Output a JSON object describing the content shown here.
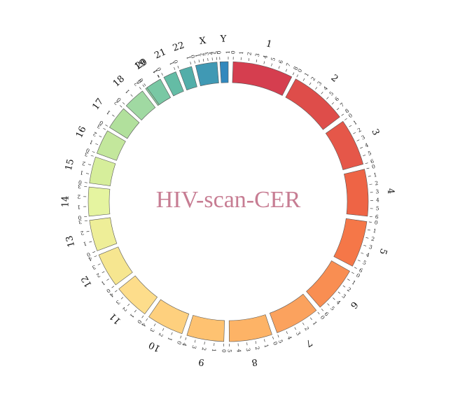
{
  "title": "HIV-scan-CER",
  "title_color": "#c77d93",
  "chromosomes": [
    {
      "name": "1",
      "ticks": [
        "0",
        "1",
        "2",
        "3",
        "4",
        "5",
        "6",
        "7",
        "8"
      ],
      "color": "#d53e4f"
    },
    {
      "name": "2",
      "ticks": [
        "0",
        "1",
        "2",
        "3",
        "4",
        "5",
        "6",
        "7",
        "8"
      ],
      "color": "#de4d4a"
    },
    {
      "name": "3",
      "ticks": [
        "0",
        "1",
        "2",
        "3",
        "4",
        "5",
        "6"
      ],
      "color": "#e55749"
    },
    {
      "name": "4",
      "ticks": [
        "0",
        "1",
        "2",
        "3",
        "4",
        "5",
        "6"
      ],
      "color": "#ee6445"
    },
    {
      "name": "5",
      "ticks": [
        "0",
        "1",
        "2",
        "3",
        "4",
        "5",
        "6"
      ],
      "color": "#f57748"
    },
    {
      "name": "6",
      "ticks": [
        "0",
        "1",
        "2",
        "3",
        "4",
        "5",
        "6"
      ],
      "color": "#f98e52"
    },
    {
      "name": "7",
      "ticks": [
        "0",
        "1",
        "2",
        "3",
        "4",
        "5"
      ],
      "color": "#fba25e"
    },
    {
      "name": "8",
      "ticks": [
        "0",
        "1",
        "2",
        "3",
        "4",
        "5"
      ],
      "color": "#fdb366"
    },
    {
      "name": "9",
      "ticks": [
        "0",
        "1",
        "2",
        "3",
        "4"
      ],
      "color": "#fec271"
    },
    {
      "name": "10",
      "ticks": [
        "0",
        "1",
        "2",
        "3",
        "4"
      ],
      "color": "#fed07e"
    },
    {
      "name": "11",
      "ticks": [
        "0",
        "1",
        "2",
        "3",
        "4"
      ],
      "color": "#fddd8b"
    },
    {
      "name": "12",
      "ticks": [
        "0",
        "1",
        "2",
        "3",
        "4"
      ],
      "color": "#f6e690"
    },
    {
      "name": "13",
      "ticks": [
        "0",
        "1",
        "2",
        "3"
      ],
      "color": "#eeee98"
    },
    {
      "name": "14",
      "ticks": [
        "0",
        "1",
        "2",
        "3"
      ],
      "color": "#e5f4a0"
    },
    {
      "name": "15",
      "ticks": [
        "0",
        "1",
        "2",
        "3"
      ],
      "color": "#d6ee9b"
    },
    {
      "name": "16",
      "ticks": [
        "0",
        "1",
        "2",
        "3"
      ],
      "color": "#c3e79c"
    },
    {
      "name": "17",
      "ticks": [
        "0",
        "1",
        "2"
      ],
      "color": "#b1e09c"
    },
    {
      "name": "18",
      "ticks": [
        "0",
        "1",
        "2"
      ],
      "color": "#a0d9a2"
    },
    {
      "name": "19",
      "ticks": [
        "0",
        "1"
      ],
      "color": "#8fd1a4"
    },
    {
      "name": "20",
      "ticks": [
        "0",
        "1"
      ],
      "color": "#79c8a4"
    },
    {
      "name": "21",
      "ticks": [
        "0",
        "1"
      ],
      "color": "#64bca5"
    },
    {
      "name": "22",
      "ticks": [
        "0",
        "1"
      ],
      "color": "#52aea9"
    },
    {
      "name": "X",
      "ticks": [
        "0",
        "1",
        "2",
        "3",
        "4",
        "5"
      ],
      "color": "#4099b4"
    },
    {
      "name": "Y",
      "ticks": [
        "0",
        "1"
      ],
      "color": "#3288bd"
    }
  ]
}
